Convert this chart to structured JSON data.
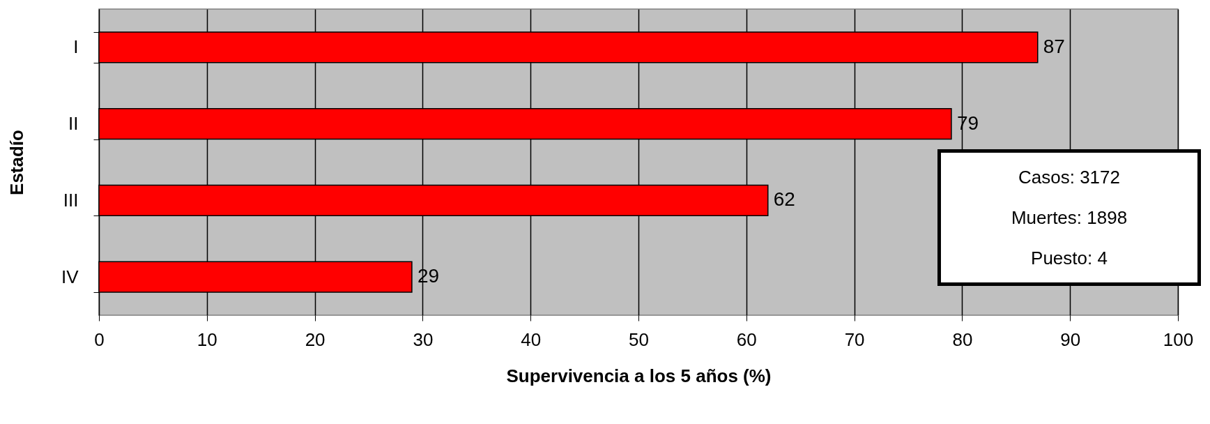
{
  "chart_data": {
    "type": "bar",
    "orientation": "horizontal",
    "xlabel": "Supervivencia a los 5 años (%)",
    "ylabel": "Estadío",
    "categories": [
      "I",
      "II",
      "III",
      "IV"
    ],
    "values": [
      87,
      79,
      62,
      29
    ],
    "color": "#ff0000",
    "xlim": [
      0,
      100
    ],
    "xticks": [
      0,
      10,
      20,
      30,
      40,
      50,
      60,
      70,
      80,
      90,
      100
    ],
    "grid": "x",
    "data_labels": true,
    "annotations": [
      "Casos: 3172",
      "Muertes: 1898",
      "Puesto: 4"
    ]
  }
}
